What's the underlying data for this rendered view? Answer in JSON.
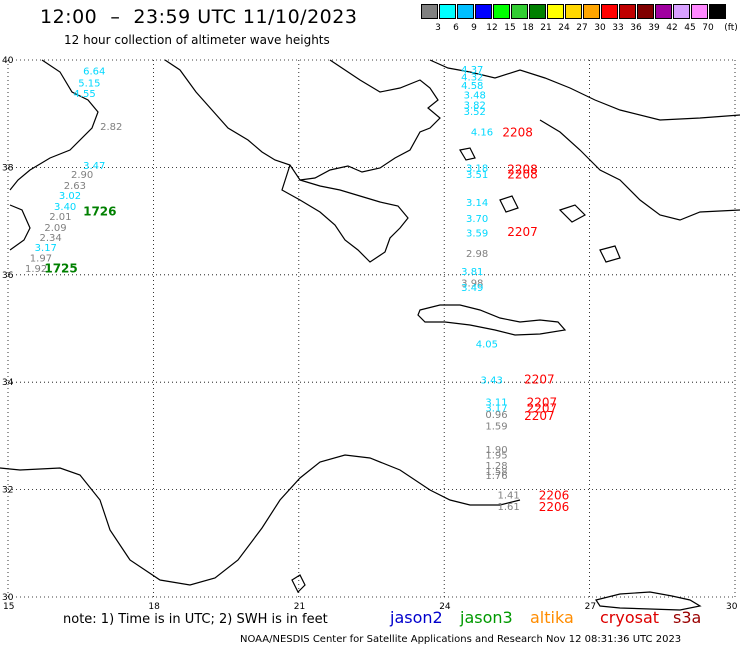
{
  "header": {
    "title": "12:00  –  23:59 UTC 11/10/2023",
    "subtitle": "12 hour collection of altimeter wave heights"
  },
  "legend": {
    "unit": "(ft)",
    "items": [
      {
        "label": "3",
        "color": "#808080"
      },
      {
        "label": "6",
        "color": "#00ffff"
      },
      {
        "label": "9",
        "color": "#00bfff"
      },
      {
        "label": "12",
        "color": "#0000ff"
      },
      {
        "label": "15",
        "color": "#00ff00"
      },
      {
        "label": "18",
        "color": "#32cd32"
      },
      {
        "label": "21",
        "color": "#008000"
      },
      {
        "label": "24",
        "color": "#ffff00"
      },
      {
        "label": "27",
        "color": "#ffd700"
      },
      {
        "label": "30",
        "color": "#ffa500"
      },
      {
        "label": "33",
        "color": "#ff0000"
      },
      {
        "label": "36",
        "color": "#c00000"
      },
      {
        "label": "39",
        "color": "#800000"
      },
      {
        "label": "42",
        "color": "#a000a0"
      },
      {
        "label": "45",
        "color": "#d8a0ff"
      },
      {
        "label": "70",
        "color": "#ff88ff"
      },
      {
        "label": "",
        "color": "#000000"
      }
    ]
  },
  "map": {
    "lat_range": [
      30,
      40
    ],
    "lon_range": [
      15,
      30
    ],
    "lat_labels": [
      "40",
      "38",
      "36",
      "34",
      "32",
      "30"
    ],
    "lon_labels": [
      "15",
      "18",
      "21",
      "24",
      "27",
      "30"
    ],
    "colors": {
      "gray": "#808080",
      "cyan": "#00d8ff",
      "red": "#ff0000",
      "green": "#008000"
    },
    "wave_heights": [
      {
        "lon": 16.55,
        "lat": 39.73,
        "value": "6.64",
        "color": "cyan"
      },
      {
        "lon": 16.45,
        "lat": 39.51,
        "value": "5.15",
        "color": "cyan"
      },
      {
        "lon": 16.35,
        "lat": 39.31,
        "value": "4.55",
        "color": "cyan"
      },
      {
        "lon": 16.9,
        "lat": 38.7,
        "value": "2.82",
        "color": "gray"
      },
      {
        "lon": 16.55,
        "lat": 37.97,
        "value": "3.47",
        "color": "cyan"
      },
      {
        "lon": 16.3,
        "lat": 37.8,
        "value": "2.90",
        "color": "gray"
      },
      {
        "lon": 16.15,
        "lat": 37.6,
        "value": "2.63",
        "color": "gray"
      },
      {
        "lon": 16.05,
        "lat": 37.41,
        "value": "3.02",
        "color": "cyan"
      },
      {
        "lon": 15.95,
        "lat": 37.21,
        "value": "3.40",
        "color": "cyan"
      },
      {
        "lon": 15.85,
        "lat": 37.02,
        "value": "2.01",
        "color": "gray"
      },
      {
        "lon": 15.75,
        "lat": 36.82,
        "value": "2.09",
        "color": "gray"
      },
      {
        "lon": 15.65,
        "lat": 36.63,
        "value": "2.34",
        "color": "gray"
      },
      {
        "lon": 15.55,
        "lat": 36.44,
        "value": "3.17",
        "color": "cyan"
      },
      {
        "lon": 15.45,
        "lat": 36.25,
        "value": "1.97",
        "color": "gray"
      },
      {
        "lon": 15.35,
        "lat": 36.05,
        "value": "1.92",
        "color": "gray"
      },
      {
        "lon": 24.35,
        "lat": 39.76,
        "value": "4.37",
        "color": "cyan"
      },
      {
        "lon": 24.35,
        "lat": 39.62,
        "value": "4.32",
        "color": "cyan"
      },
      {
        "lon": 24.35,
        "lat": 39.46,
        "value": "4.58",
        "color": "cyan"
      },
      {
        "lon": 24.4,
        "lat": 39.28,
        "value": "3.48",
        "color": "cyan"
      },
      {
        "lon": 24.4,
        "lat": 39.1,
        "value": "3.82",
        "color": "cyan"
      },
      {
        "lon": 24.4,
        "lat": 38.98,
        "value": "3.52",
        "color": "cyan"
      },
      {
        "lon": 24.55,
        "lat": 38.59,
        "value": "4.16",
        "color": "cyan"
      },
      {
        "lon": 24.45,
        "lat": 37.92,
        "value": "3.18",
        "color": "cyan"
      },
      {
        "lon": 24.45,
        "lat": 37.8,
        "value": "3.51",
        "color": "cyan"
      },
      {
        "lon": 24.45,
        "lat": 37.28,
        "value": "3.14",
        "color": "cyan"
      },
      {
        "lon": 24.45,
        "lat": 36.98,
        "value": "3.70",
        "color": "cyan"
      },
      {
        "lon": 24.45,
        "lat": 36.71,
        "value": "3.59",
        "color": "cyan"
      },
      {
        "lon": 24.45,
        "lat": 36.33,
        "value": "2.98",
        "color": "gray"
      },
      {
        "lon": 24.35,
        "lat": 36.0,
        "value": "3.81",
        "color": "cyan"
      },
      {
        "lon": 24.35,
        "lat": 35.78,
        "value": "3.98",
        "color": "gray"
      },
      {
        "lon": 24.35,
        "lat": 35.7,
        "value": "3.49",
        "color": "cyan"
      },
      {
        "lon": 24.65,
        "lat": 34.65,
        "value": "4.05",
        "color": "cyan"
      },
      {
        "lon": 24.75,
        "lat": 33.98,
        "value": "3.43",
        "color": "cyan"
      },
      {
        "lon": 24.85,
        "lat": 33.57,
        "value": "3.11",
        "color": "cyan"
      },
      {
        "lon": 24.85,
        "lat": 33.45,
        "value": "3.17",
        "color": "cyan"
      },
      {
        "lon": 24.85,
        "lat": 33.33,
        "value": "0.96",
        "color": "gray"
      },
      {
        "lon": 24.85,
        "lat": 33.12,
        "value": "1.59",
        "color": "gray"
      },
      {
        "lon": 24.85,
        "lat": 32.68,
        "value": "1.90",
        "color": "gray"
      },
      {
        "lon": 24.85,
        "lat": 32.58,
        "value": "1.95",
        "color": "gray"
      },
      {
        "lon": 24.85,
        "lat": 32.38,
        "value": "1.28",
        "color": "gray"
      },
      {
        "lon": 24.85,
        "lat": 32.27,
        "value": "1.58",
        "color": "gray"
      },
      {
        "lon": 24.85,
        "lat": 32.2,
        "value": "1.76",
        "color": "gray"
      },
      {
        "lon": 25.1,
        "lat": 31.83,
        "value": "1.41",
        "color": "gray"
      },
      {
        "lon": 25.1,
        "lat": 31.62,
        "value": "1.61",
        "color": "gray"
      }
    ],
    "times": [
      {
        "lon": 16.55,
        "lat": 37.1,
        "value": "1726",
        "color": "green"
      },
      {
        "lon": 15.75,
        "lat": 36.04,
        "value": "1725",
        "color": "green"
      },
      {
        "lon": 25.2,
        "lat": 38.58,
        "value": "2208",
        "color": "red"
      },
      {
        "lon": 25.3,
        "lat": 37.89,
        "value": "2208",
        "color": "red"
      },
      {
        "lon": 25.3,
        "lat": 37.79,
        "value": "2208",
        "color": "red"
      },
      {
        "lon": 25.3,
        "lat": 36.72,
        "value": "2207",
        "color": "red"
      },
      {
        "lon": 25.65,
        "lat": 33.98,
        "value": "2207",
        "color": "red"
      },
      {
        "lon": 25.7,
        "lat": 33.55,
        "value": "2207",
        "color": "red"
      },
      {
        "lon": 25.7,
        "lat": 33.44,
        "value": "2207",
        "color": "red"
      },
      {
        "lon": 25.65,
        "lat": 33.3,
        "value": "2207",
        "color": "red"
      },
      {
        "lon": 25.95,
        "lat": 31.82,
        "value": "2206",
        "color": "red"
      },
      {
        "lon": 25.95,
        "lat": 31.6,
        "value": "2206",
        "color": "red"
      }
    ]
  },
  "note": "note:  1) Time is in UTC;  2) SWH is in feet",
  "satellites": [
    {
      "name": "jason2",
      "color": "#0000cc"
    },
    {
      "name": "jason3",
      "color": "#009900"
    },
    {
      "name": "altika",
      "color": "#ff8c00"
    },
    {
      "name": "cryosat",
      "color": "#dd0000"
    },
    {
      "name": "s3a",
      "color": "#990000"
    }
  ],
  "footer": "NOAA/NESDIS Center for Satellite Applications and Research     Nov 12 08:31:36 UTC 2023"
}
